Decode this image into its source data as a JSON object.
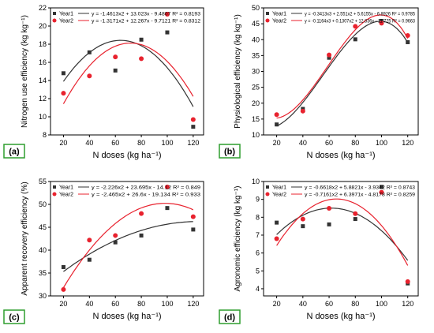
{
  "chart_data": [
    {
      "type": "scatter",
      "panel_label": "(a)",
      "xlabel": "N doses (kg ha⁻¹)",
      "ylabel": "Nitrogen use efficiency (kg kg⁻¹)",
      "xlim": [
        10,
        128
      ],
      "ylim": [
        8,
        22
      ],
      "xticks": [
        20,
        40,
        60,
        80,
        100,
        120
      ],
      "yticks": [
        8,
        10,
        12,
        14,
        16,
        18,
        20,
        22
      ],
      "legend_position": "top",
      "series": [
        {
          "name": "Year1",
          "color": "#333333",
          "marker": "square",
          "x": [
            20,
            40,
            60,
            80,
            100,
            120
          ],
          "y": [
            14.8,
            17.1,
            15.1,
            18.5,
            19.3,
            8.9
          ],
          "equation": "y = -1.4613x2 + 13.023x - 9.4807 R² = 0.8193"
        },
        {
          "name": "Year2",
          "color": "#e8222e",
          "marker": "circle",
          "x": [
            20,
            40,
            60,
            80,
            100,
            120
          ],
          "y": [
            12.6,
            14.5,
            16.6,
            16.4,
            21.3,
            9.7
          ],
          "equation": "y = -1.3171x2 + 12.267x - 9.7121 R² = 0.8312"
        }
      ]
    },
    {
      "type": "scatter",
      "panel_label": "(b)",
      "xlabel": "N doses (kg ha⁻¹)",
      "ylabel": "Physiological efficiency (kg kg⁻¹)",
      "xlim": [
        10,
        128
      ],
      "ylim": [
        10,
        50
      ],
      "xticks": [
        20,
        40,
        60,
        80,
        100,
        120
      ],
      "yticks": [
        10,
        15,
        20,
        25,
        30,
        35,
        40,
        45,
        50
      ],
      "legend_position": "top",
      "series": [
        {
          "name": "Year1",
          "color": "#333333",
          "marker": "square",
          "x": [
            20,
            40,
            60,
            80,
            100,
            120
          ],
          "y": [
            13.3,
            18.2,
            34.3,
            40.1,
            45.9,
            39.2
          ],
          "equation": "y = -0.3413x3 + 2.551x2 + 5.6155x - 6.8926 R² = 0.9785"
        },
        {
          "name": "Year2",
          "color": "#e8222e",
          "marker": "circle",
          "x": [
            20,
            40,
            60,
            80,
            100,
            120
          ],
          "y": [
            16.4,
            17.5,
            35.2,
            44.2,
            45.2,
            41.3
          ],
          "equation": "y = -0.1164x3 + 0.1307x2 + 12.836x - 11.725 R² = 0.9663"
        }
      ]
    },
    {
      "type": "scatter",
      "panel_label": "(c)",
      "xlabel": "N doses (kg ha⁻¹)",
      "ylabel": "Apparent recovery efficiency (%)",
      "xlim": [
        10,
        128
      ],
      "ylim": [
        30,
        55
      ],
      "xticks": [
        20,
        40,
        60,
        80,
        100,
        120
      ],
      "yticks": [
        30,
        35,
        40,
        45,
        50,
        55
      ],
      "legend_position": "top",
      "series": [
        {
          "name": "Year1",
          "color": "#333333",
          "marker": "square",
          "x": [
            20,
            40,
            60,
            80,
            100,
            120
          ],
          "y": [
            36.3,
            37.9,
            41.7,
            43.2,
            49.2,
            44.5
          ],
          "equation": "y = -2.226x2 + 23.695x - 14.12 R² = 0.849"
        },
        {
          "name": "Year2",
          "color": "#e8222e",
          "marker": "circle",
          "x": [
            20,
            40,
            60,
            80,
            100,
            120
          ],
          "y": [
            31.4,
            42.2,
            43.2,
            48.0,
            53.8,
            47.3
          ],
          "equation": "y = -2.465x2 + 26.6x - 19.134 R² = 0.933"
        }
      ]
    },
    {
      "type": "scatter",
      "panel_label": "(d)",
      "xlabel": "N doses (kg ha⁻¹)",
      "ylabel": "Agronomic efficiency (kg kg⁻¹)",
      "xlim": [
        10,
        128
      ],
      "ylim": [
        3.6,
        10
      ],
      "xticks": [
        20,
        40,
        60,
        80,
        100,
        120
      ],
      "yticks": [
        4,
        5,
        6,
        7,
        8,
        9,
        10
      ],
      "legend_position": "top",
      "series": [
        {
          "name": "Year1",
          "color": "#333333",
          "marker": "square",
          "x": [
            20,
            40,
            60,
            80,
            100,
            120
          ],
          "y": [
            7.7,
            7.5,
            7.6,
            7.9,
            9.7,
            4.3
          ],
          "equation": "y = -0.6618x2 + 5.8821x - 3.9342 R² = 0.8743"
        },
        {
          "name": "Year2",
          "color": "#e8222e",
          "marker": "circle",
          "x": [
            20,
            40,
            60,
            80,
            100,
            120
          ],
          "y": [
            6.8,
            7.9,
            8.5,
            8.2,
            9.4,
            4.4
          ],
          "equation": "y = -0.7161x2 + 6.3971x - 4.8178 R² = 0.8259"
        }
      ]
    }
  ]
}
